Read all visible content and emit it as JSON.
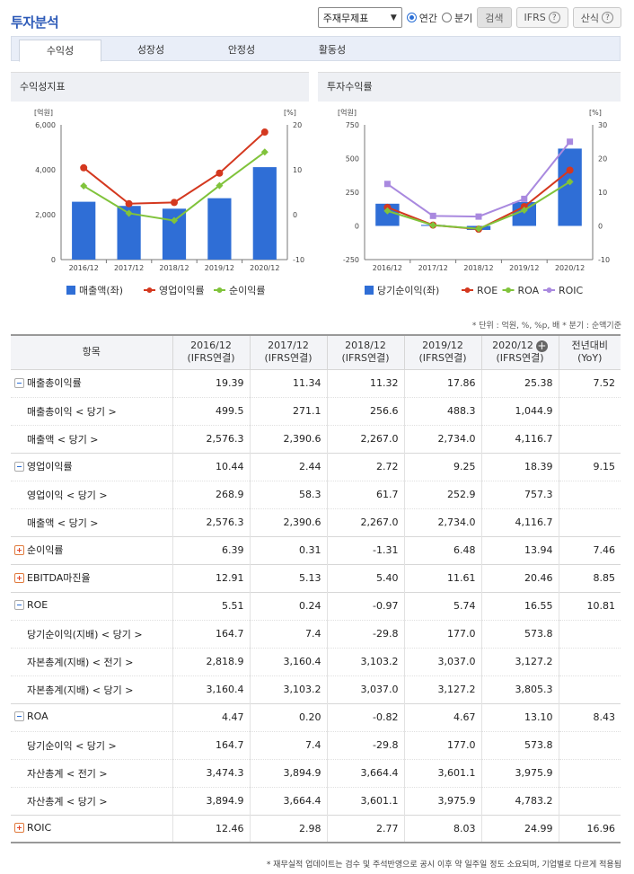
{
  "header": {
    "title": "투자분석"
  },
  "controls": {
    "select_value": "주재무제표",
    "radio_annual": "연간",
    "radio_quarter": "분기",
    "search_label": "검색",
    "ifrs_label": "IFRS",
    "formula_label": "산식"
  },
  "tabs": [
    "수익성",
    "성장성",
    "안정성",
    "활동성"
  ],
  "panels": {
    "left_title": "수익성지표",
    "right_title": "투자수익률"
  },
  "colors": {
    "bar": "#2f6ed6",
    "red": "#d4381f",
    "green": "#80c33b",
    "purple": "#a989df"
  },
  "chart_data": [
    {
      "type": "bar+line",
      "title": "수익성지표",
      "categories": [
        "2016/12",
        "2017/12",
        "2018/12",
        "2019/12",
        "2020/12"
      ],
      "y_left_unit": "[억원]",
      "y_right_unit": "[%]",
      "y_left_ticks": [
        "6,000",
        "4,000",
        "2,000",
        "0"
      ],
      "y_right_ticks": [
        "20",
        "10",
        "0",
        "-10"
      ],
      "ylim_left": [
        0,
        6000
      ],
      "ylim_right": [
        -10,
        20
      ],
      "series": [
        {
          "name": "매출액(좌)",
          "kind": "bar",
          "axis": "left",
          "color": "#2f6ed6",
          "values": [
            2576.3,
            2390.6,
            2267.0,
            2734.0,
            4116.7
          ]
        },
        {
          "name": "영업이익률",
          "kind": "line",
          "axis": "right",
          "color": "#d4381f",
          "values": [
            10.44,
            2.44,
            2.72,
            9.25,
            18.39
          ]
        },
        {
          "name": "순이익률",
          "kind": "line",
          "axis": "right",
          "color": "#80c33b",
          "values": [
            6.39,
            0.31,
            -1.31,
            6.48,
            13.94
          ]
        }
      ]
    },
    {
      "type": "bar+line",
      "title": "투자수익률",
      "categories": [
        "2016/12",
        "2017/12",
        "2018/12",
        "2019/12",
        "2020/12"
      ],
      "y_left_unit": "[억원]",
      "y_right_unit": "[%]",
      "y_left_ticks": [
        "750",
        "500",
        "250",
        "0",
        "-250"
      ],
      "y_right_ticks": [
        "30",
        "20",
        "10",
        "0",
        "-10"
      ],
      "ylim_left": [
        -250,
        750
      ],
      "ylim_right": [
        -10,
        30
      ],
      "series": [
        {
          "name": "당기순이익(좌)",
          "kind": "bar",
          "axis": "left",
          "color": "#2f6ed6",
          "values": [
            164.7,
            7.4,
            -29.8,
            177.0,
            573.8
          ]
        },
        {
          "name": "ROE",
          "kind": "line",
          "axis": "right",
          "color": "#d4381f",
          "values": [
            5.51,
            0.24,
            -0.97,
            5.74,
            16.55
          ]
        },
        {
          "name": "ROA",
          "kind": "line",
          "axis": "right",
          "color": "#80c33b",
          "values": [
            4.47,
            0.2,
            -0.82,
            4.67,
            13.1
          ]
        },
        {
          "name": "ROIC",
          "kind": "line",
          "axis": "right",
          "color": "#a989df",
          "values": [
            12.46,
            2.98,
            2.77,
            8.03,
            24.99
          ]
        }
      ]
    }
  ],
  "note": "* 단위 : 억원, %, %p, 배   * 분기 : 순액기준",
  "table": {
    "headers": [
      {
        "line1": "항목",
        "line2": ""
      },
      {
        "line1": "2016/12",
        "line2": "(IFRS연결)"
      },
      {
        "line1": "2017/12",
        "line2": "(IFRS연결)"
      },
      {
        "line1": "2018/12",
        "line2": "(IFRS연결)"
      },
      {
        "line1": "2019/12",
        "line2": "(IFRS연결)"
      },
      {
        "line1": "2020/12",
        "line2": "(IFRS연결)"
      },
      {
        "line1": "전년대비",
        "line2": "(YoY)"
      }
    ],
    "rows": [
      {
        "label": "매출총이익률",
        "toggle": "minus",
        "sub": false,
        "values": [
          "19.39",
          "11.34",
          "11.32",
          "17.86",
          "25.38",
          "7.52"
        ]
      },
      {
        "label": "매출총이익 < 당기 >",
        "toggle": "",
        "sub": true,
        "values": [
          "499.5",
          "271.1",
          "256.6",
          "488.3",
          "1,044.9",
          ""
        ]
      },
      {
        "label": "매출액 < 당기 >",
        "toggle": "",
        "sub": true,
        "values": [
          "2,576.3",
          "2,390.6",
          "2,267.0",
          "2,734.0",
          "4,116.7",
          ""
        ]
      },
      {
        "label": "영업이익률",
        "toggle": "minus",
        "sub": false,
        "values": [
          "10.44",
          "2.44",
          "2.72",
          "9.25",
          "18.39",
          "9.15"
        ]
      },
      {
        "label": "영업이익 < 당기 >",
        "toggle": "",
        "sub": true,
        "values": [
          "268.9",
          "58.3",
          "61.7",
          "252.9",
          "757.3",
          ""
        ]
      },
      {
        "label": "매출액 < 당기 >",
        "toggle": "",
        "sub": true,
        "values": [
          "2,576.3",
          "2,390.6",
          "2,267.0",
          "2,734.0",
          "4,116.7",
          ""
        ]
      },
      {
        "label": "순이익률",
        "toggle": "plus",
        "sub": false,
        "values": [
          "6.39",
          "0.31",
          "-1.31",
          "6.48",
          "13.94",
          "7.46"
        ]
      },
      {
        "label": "EBITDA마진율",
        "toggle": "plus",
        "sub": false,
        "values": [
          "12.91",
          "5.13",
          "5.40",
          "11.61",
          "20.46",
          "8.85"
        ]
      },
      {
        "label": "ROE",
        "toggle": "minus",
        "sub": false,
        "values": [
          "5.51",
          "0.24",
          "-0.97",
          "5.74",
          "16.55",
          "10.81"
        ]
      },
      {
        "label": "당기순이익(지배) < 당기 >",
        "toggle": "",
        "sub": true,
        "values": [
          "164.7",
          "7.4",
          "-29.8",
          "177.0",
          "573.8",
          ""
        ]
      },
      {
        "label": "자본총계(지배) < 전기 >",
        "toggle": "",
        "sub": true,
        "values": [
          "2,818.9",
          "3,160.4",
          "3,103.2",
          "3,037.0",
          "3,127.2",
          ""
        ]
      },
      {
        "label": "자본총계(지배) < 당기 >",
        "toggle": "",
        "sub": true,
        "values": [
          "3,160.4",
          "3,103.2",
          "3,037.0",
          "3,127.2",
          "3,805.3",
          ""
        ]
      },
      {
        "label": "ROA",
        "toggle": "minus",
        "sub": false,
        "values": [
          "4.47",
          "0.20",
          "-0.82",
          "4.67",
          "13.10",
          "8.43"
        ]
      },
      {
        "label": "당기순이익 < 당기 >",
        "toggle": "",
        "sub": true,
        "values": [
          "164.7",
          "7.4",
          "-29.8",
          "177.0",
          "573.8",
          ""
        ]
      },
      {
        "label": "자산총계 < 전기 >",
        "toggle": "",
        "sub": true,
        "values": [
          "3,474.3",
          "3,894.9",
          "3,664.4",
          "3,601.1",
          "3,975.9",
          ""
        ]
      },
      {
        "label": "자산총계 < 당기 >",
        "toggle": "",
        "sub": true,
        "values": [
          "3,894.9",
          "3,664.4",
          "3,601.1",
          "3,975.9",
          "4,783.2",
          ""
        ]
      },
      {
        "label": "ROIC",
        "toggle": "plus",
        "sub": false,
        "values": [
          "12.46",
          "2.98",
          "2.77",
          "8.03",
          "24.99",
          "16.96"
        ]
      }
    ]
  },
  "footer": "* 재무실적 업데이트는 검수 및 주석반영으로 공시 이후 약 일주일 정도 소요되며, 기업별로 다르게 적용됨"
}
